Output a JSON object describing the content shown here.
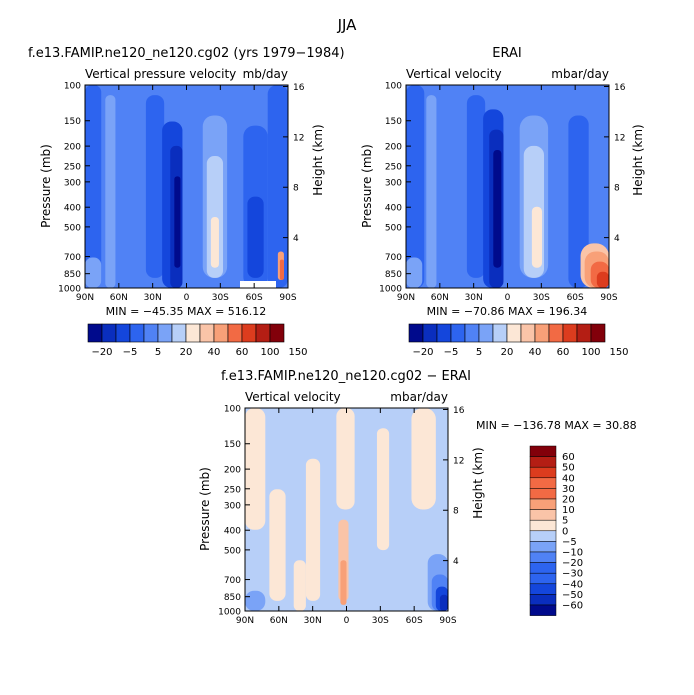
{
  "page_title": "JJA",
  "colors": {
    "neg6": "#000a8c",
    "neg5": "#0a2ebe",
    "neg4": "#1446dc",
    "neg3": "#2d64ef",
    "neg2": "#5082f5",
    "neg1": "#7aa3f7",
    "neg0": "#b7cff8",
    "pos0": "#fce7d6",
    "pos1": "#fac4a8",
    "pos2": "#f8a078",
    "pos3": "#f26a44",
    "pos4": "#dc3c1e",
    "pos5": "#b41e14",
    "pos6": "#82000a"
  },
  "chart_data": [
    {
      "type": "heatmap",
      "id": "model",
      "title": "f.e13.FAMIP.ne120_ne120.cg02 (yrs 1979−1984)",
      "subtitle_left": "Vertical pressure velocity",
      "subtitle_right": "mb/day",
      "ylabel_left": "Pressure (mb)",
      "ylabel_right": "Height (km)",
      "xticks": [
        "90N",
        "60N",
        "30N",
        "0",
        "30S",
        "60S",
        "90S"
      ],
      "yticks_left": [
        "100",
        "150",
        "200",
        "250",
        "300",
        "400",
        "500",
        "700",
        "850",
        "1000"
      ],
      "yticks_right": [
        "16",
        "12",
        "8",
        "4"
      ],
      "stats": "MIN = −45.35   MAX = 516.12",
      "min": -45.35,
      "max": 516.12,
      "colorbar_labels": [
        "−20",
        "−5",
        "5",
        "20",
        "40",
        "60",
        "100",
        "150"
      ]
    },
    {
      "type": "heatmap",
      "id": "obs",
      "title": "ERAI",
      "subtitle_left": "Vertical velocity",
      "subtitle_right": "mbar/day",
      "ylabel_left": "Pressure (mb)",
      "ylabel_right": "Height (km)",
      "xticks": [
        "90N",
        "60N",
        "30N",
        "0",
        "30S",
        "60S",
        "90S"
      ],
      "yticks_left": [
        "100",
        "150",
        "200",
        "250",
        "300",
        "400",
        "500",
        "700",
        "850",
        "1000"
      ],
      "yticks_right": [
        "16",
        "12",
        "8",
        "4"
      ],
      "stats": "MIN = −70.86   MAX = 196.34",
      "min": -70.86,
      "max": 196.34,
      "colorbar_labels": [
        "−20",
        "−5",
        "5",
        "20",
        "40",
        "60",
        "100",
        "150"
      ]
    },
    {
      "type": "heatmap",
      "id": "diff",
      "title": "f.e13.FAMIP.ne120_ne120.cg02 − ERAI",
      "subtitle_left": "Vertical velocity",
      "subtitle_right": "mbar/day",
      "ylabel_left": "Pressure (mb)",
      "ylabel_right": "Height (km)",
      "xticks": [
        "90N",
        "60N",
        "30N",
        "0",
        "30S",
        "60S",
        "90S"
      ],
      "yticks_left": [
        "100",
        "150",
        "200",
        "250",
        "300",
        "400",
        "500",
        "700",
        "850",
        "1000"
      ],
      "yticks_right": [
        "16",
        "12",
        "8",
        "4"
      ],
      "stats": "MIN = −136.78   MAX =  30.88",
      "min": -136.78,
      "max": 30.88,
      "colorbar_labels": [
        "60",
        "50",
        "40",
        "30",
        "20",
        "10",
        "5",
        "0",
        "−5",
        "−10",
        "−20",
        "−30",
        "−40",
        "−50",
        "−60"
      ]
    }
  ]
}
